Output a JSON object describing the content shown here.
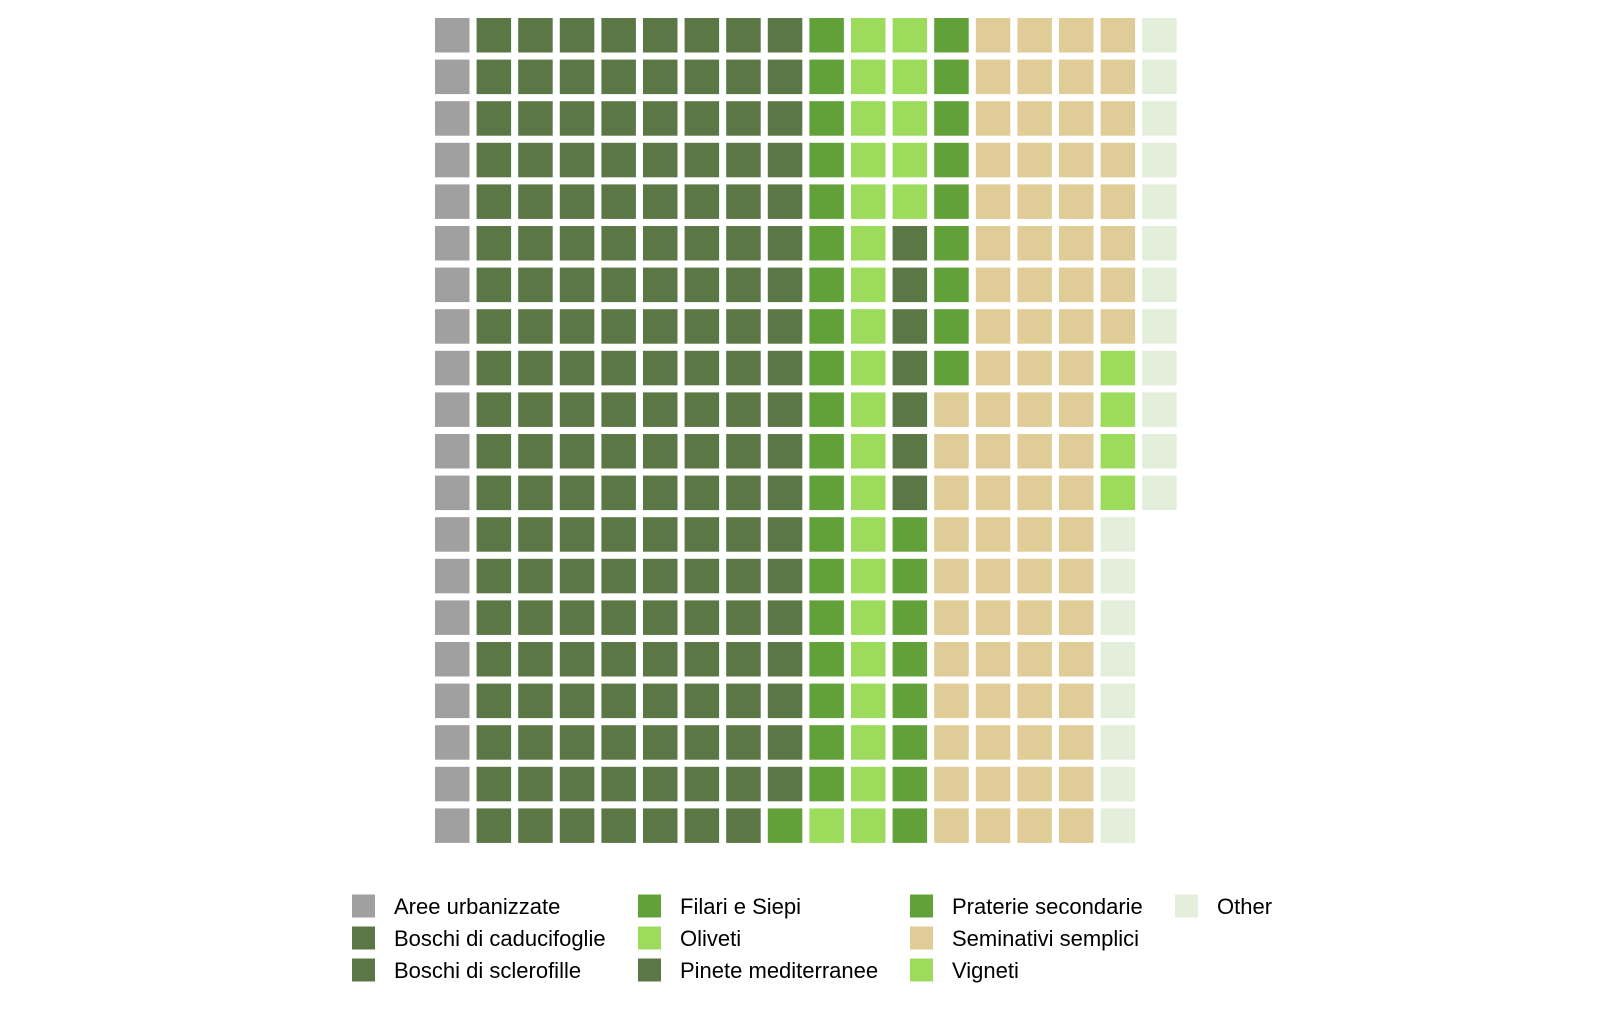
{
  "chart_data": {
    "type": "waffle",
    "cells_per_row": 20,
    "fill_direction": "column-major, top-to-bottom",
    "categories": [
      {
        "name": "Aree urbanizzate",
        "value": 20,
        "color": "#a0a0a0"
      },
      {
        "name": "Boschi di caducifoglie",
        "value": 138,
        "color": "#5a7745"
      },
      {
        "name": "Boschi di sclerofille",
        "value": 21,
        "color": "#5a7745"
      },
      {
        "name": "Filari e Siepi",
        "value": 20,
        "color": "#62a03a"
      },
      {
        "name": "Oliveti",
        "value": 26,
        "color": "#9cdb5c"
      },
      {
        "name": "Pinete mediterranee",
        "value": 7,
        "color": "#5a7745"
      },
      {
        "name": "Praterie secondarie",
        "value": 17,
        "color": "#62a03a"
      },
      {
        "name": "Seminativi semplici",
        "value": 79,
        "color": "#dfcc96"
      },
      {
        "name": "Vigneti",
        "value": 4,
        "color": "#9cdb5c"
      },
      {
        "name": "Other",
        "value": 20,
        "color": "#e3efdb"
      }
    ],
    "legend_position": "bottom"
  }
}
